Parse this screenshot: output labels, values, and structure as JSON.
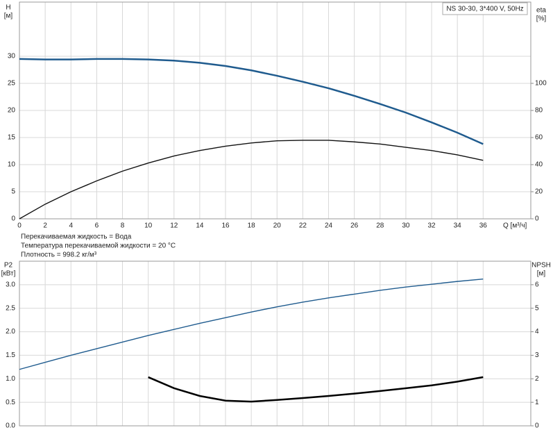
{
  "chart_data": [
    {
      "type": "line",
      "title": "NS 30-30, 3*400 V, 50Hz",
      "ylabel": [
        "H",
        "[м]"
      ],
      "y2label": [
        "eta",
        "[%]"
      ],
      "xlabel": "Q [м³/ч]",
      "annotations": [
        "Перекачиваемая жидкость = Вода",
        "Температура перекачиваемой жидкости = 20 °C",
        "Плотность = 998.2 кг/м³"
      ],
      "x": [
        0,
        2,
        4,
        6,
        8,
        10,
        12,
        14,
        16,
        18,
        20,
        22,
        24,
        26,
        28,
        30,
        32,
        34,
        36
      ],
      "xlim": [
        0,
        39.7
      ],
      "xticks": [
        0,
        2,
        4,
        6,
        8,
        10,
        12,
        14,
        16,
        18,
        20,
        22,
        24,
        26,
        28,
        30,
        32,
        34,
        36
      ],
      "ylim": [
        0,
        40
      ],
      "yticks": [
        0,
        5,
        10,
        15,
        20,
        25,
        30
      ],
      "y2lim": [
        0,
        160
      ],
      "y2ticks": [
        0,
        20,
        40,
        60,
        80,
        100
      ],
      "grid": true,
      "series": [
        {
          "color": "#1f5b8e",
          "axis": "y",
          "values": [
            29.5,
            29.4,
            29.4,
            29.5,
            29.5,
            29.4,
            29.2,
            28.8,
            28.2,
            27.4,
            26.4,
            25.3,
            24.1,
            22.7,
            21.2,
            19.6,
            17.8,
            15.9,
            13.8
          ]
        },
        {
          "color": "#111111",
          "axis": "y2",
          "values": [
            0,
            10.8,
            20,
            28,
            35.2,
            41.2,
            46.4,
            50.4,
            53.6,
            56,
            57.6,
            58,
            58,
            56.8,
            55.2,
            52.8,
            50.4,
            47.2,
            43.2
          ]
        }
      ]
    },
    {
      "type": "line",
      "ylabel": [
        "P2",
        "[кВт]"
      ],
      "y2label": [
        "NPSH",
        "[м]"
      ],
      "x": [
        0,
        2,
        4,
        6,
        8,
        10,
        12,
        14,
        16,
        18,
        20,
        22,
        24,
        26,
        28,
        30,
        32,
        34,
        36
      ],
      "xlim": [
        0,
        39.7
      ],
      "ylim": [
        0,
        3.5
      ],
      "yticks": [
        {
          "value": 0,
          "label": "0.0"
        },
        0.5,
        {
          "value": 1,
          "label": "1.0"
        },
        1.5,
        {
          "value": 2,
          "label": "2.0"
        },
        2.5,
        {
          "value": 3,
          "label": "3.0"
        }
      ],
      "y2lim": [
        0,
        7
      ],
      "y2ticks": [
        0,
        1,
        2,
        3,
        4,
        5,
        6
      ],
      "grid": true,
      "series": [
        {
          "color": "#1f5b8e",
          "axis": "y",
          "values": [
            1.2,
            1.35,
            1.5,
            1.64,
            1.78,
            1.92,
            2.05,
            2.18,
            2.3,
            2.42,
            2.53,
            2.63,
            2.72,
            2.8,
            2.88,
            2.95,
            3.01,
            3.07,
            3.12
          ]
        },
        {
          "color": "#000000",
          "axis": "y2",
          "values": [
            null,
            null,
            null,
            null,
            null,
            2.07,
            1.6,
            1.27,
            1.07,
            1.03,
            1.1,
            1.18,
            1.27,
            1.37,
            1.48,
            1.6,
            1.72,
            1.88,
            2.07
          ]
        }
      ]
    }
  ]
}
